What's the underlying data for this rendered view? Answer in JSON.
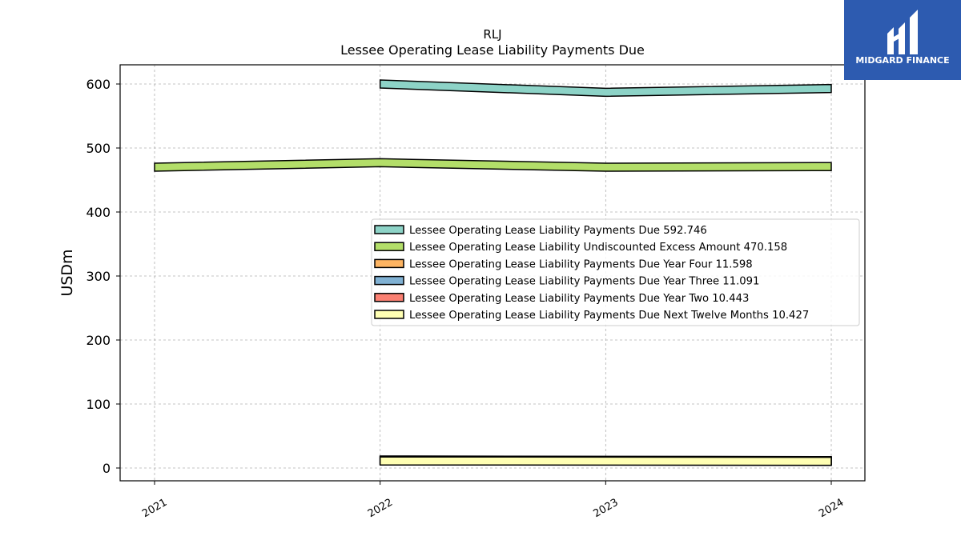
{
  "brand": {
    "name": "MIDGARD FINANCE",
    "bg_color": "#2d5bb0",
    "icon": "midgard-logo-mark"
  },
  "chart_data": {
    "type": "area",
    "title": "RLJ",
    "subtitle": "Lessee Operating Lease Liability Payments Due",
    "xlabel": "",
    "ylabel": "USDm",
    "x": [
      "2021",
      "2022",
      "2023",
      "2024"
    ],
    "ylim": [
      -20,
      630
    ],
    "yticks": [
      0,
      100,
      200,
      300,
      400,
      500,
      600
    ],
    "grid": true,
    "legend_position": "center-right",
    "series": [
      {
        "name": "Lessee Operating Lease Liability Payments Due",
        "legend_label": "Lessee Operating Lease Liability Payments Due  592.746",
        "values": [
          null,
          600,
          587,
          593
        ],
        "color": "#8dd3c7"
      },
      {
        "name": "Lessee Operating Lease Liability Undiscounted Excess Amount",
        "legend_label": "Lessee Operating Lease Liability Undiscounted Excess Amount  470.158",
        "values": [
          470,
          477,
          470,
          471
        ],
        "color": "#b3de69"
      },
      {
        "name": "Lessee Operating Lease Liability Payments Due Year Four",
        "legend_label": "Lessee Operating Lease Liability Payments Due Year Four  11.598",
        "values": [
          null,
          12.5,
          12.0,
          11.6
        ],
        "color": "#fdb462"
      },
      {
        "name": "Lessee Operating Lease Liability Payments Due Year Three",
        "legend_label": "Lessee Operating Lease Liability Payments Due Year Three  11.091",
        "values": [
          null,
          12.0,
          11.5,
          11.1
        ],
        "color": "#80b1d3"
      },
      {
        "name": "Lessee Operating Lease Liability Payments Due Year Two",
        "legend_label": "Lessee Operating Lease Liability Payments Due Year Two  10.443",
        "values": [
          null,
          11.5,
          11.0,
          10.4
        ],
        "color": "#fb8072"
      },
      {
        "name": "Lessee Operating Lease Liability Payments Due Next Twelve Months",
        "legend_label": "Lessee Operating Lease Liability Payments Due Next Twelve Months  10.427",
        "values": [
          null,
          11.0,
          10.8,
          10.4
        ],
        "color": "#ffffb3"
      }
    ]
  }
}
